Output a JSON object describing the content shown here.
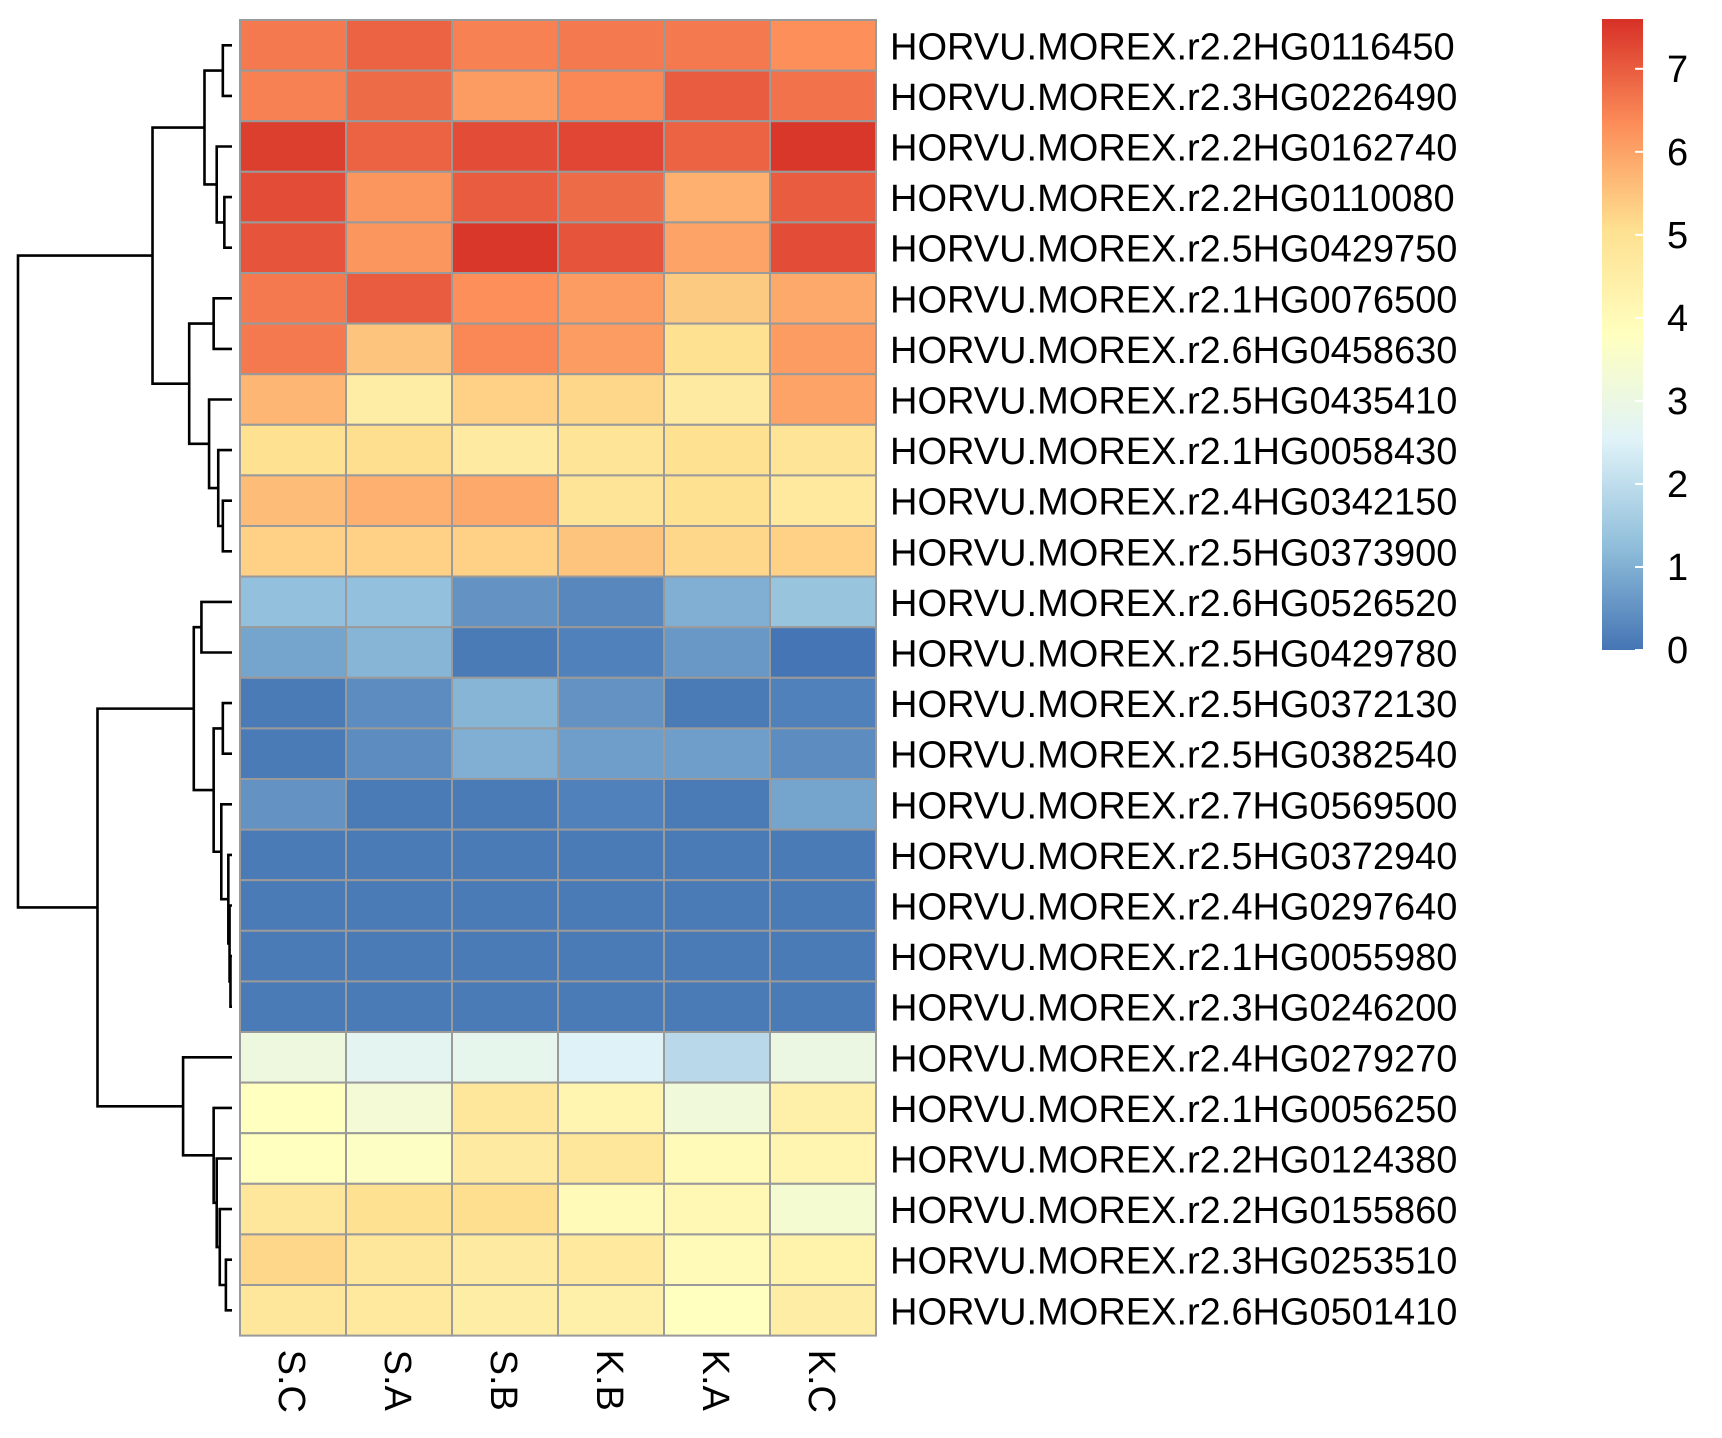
{
  "chart_data": {
    "type": "heatmap",
    "title": "",
    "xlabel": "",
    "ylabel": "",
    "columns": [
      "S.C",
      "S.A",
      "S.B",
      "K.B",
      "K.A",
      "K.C"
    ],
    "rows": [
      "HORVU.MOREX.r2.2HG0116450",
      "HORVU.MOREX.r2.3HG0226490",
      "HORVU.MOREX.r2.2HG0162740",
      "HORVU.MOREX.r2.2HG0110080",
      "HORVU.MOREX.r2.5HG0429750",
      "HORVU.MOREX.r2.1HG0076500",
      "HORVU.MOREX.r2.6HG0458630",
      "HORVU.MOREX.r2.5HG0435410",
      "HORVU.MOREX.r2.1HG0058430",
      "HORVU.MOREX.r2.4HG0342150",
      "HORVU.MOREX.r2.5HG0373900",
      "HORVU.MOREX.r2.6HG0526520",
      "HORVU.MOREX.r2.5HG0429780",
      "HORVU.MOREX.r2.5HG0372130",
      "HORVU.MOREX.r2.5HG0382540",
      "HORVU.MOREX.r2.7HG0569500",
      "HORVU.MOREX.r2.5HG0372940",
      "HORVU.MOREX.r2.4HG0297640",
      "HORVU.MOREX.r2.1HG0055980",
      "HORVU.MOREX.r2.3HG0246200",
      "HORVU.MOREX.r2.4HG0279270",
      "HORVU.MOREX.r2.1HG0056250",
      "HORVU.MOREX.r2.2HG0124380",
      "HORVU.MOREX.r2.2HG0155860",
      "HORVU.MOREX.r2.3HG0253510",
      "HORVU.MOREX.r2.6HG0501410"
    ],
    "values": [
      [
        6.6,
        6.9,
        6.5,
        6.6,
        6.6,
        6.3
      ],
      [
        6.5,
        6.8,
        6.1,
        6.4,
        7.0,
        6.7
      ],
      [
        7.4,
        6.9,
        7.2,
        7.3,
        6.9,
        7.5
      ],
      [
        7.2,
        6.2,
        7.0,
        6.8,
        5.8,
        7.0
      ],
      [
        7.1,
        6.2,
        7.5,
        7.1,
        6.0,
        7.2
      ],
      [
        6.6,
        7.0,
        6.3,
        6.1,
        5.4,
        5.9
      ],
      [
        6.6,
        5.5,
        6.4,
        6.1,
        5.0,
        6.1
      ],
      [
        5.7,
        4.5,
        5.3,
        5.2,
        4.6,
        6.0
      ],
      [
        5.0,
        5.1,
        4.6,
        4.9,
        5.0,
        4.9
      ],
      [
        5.6,
        5.8,
        5.9,
        4.9,
        5.0,
        4.7
      ],
      [
        5.3,
        5.3,
        5.3,
        5.5,
        5.2,
        5.3
      ],
      [
        1.3,
        1.3,
        0.5,
        0.3,
        1.0,
        1.4
      ],
      [
        0.8,
        1.1,
        0.1,
        0.2,
        0.6,
        0.0
      ],
      [
        0.1,
        0.4,
        1.1,
        0.5,
        0.1,
        0.2
      ],
      [
        0.1,
        0.4,
        1.0,
        0.7,
        0.7,
        0.4
      ],
      [
        0.5,
        0.1,
        0.1,
        0.2,
        0.1,
        0.8
      ],
      [
        0.1,
        0.1,
        0.1,
        0.1,
        0.1,
        0.1
      ],
      [
        0.1,
        0.1,
        0.1,
        0.1,
        0.1,
        0.1
      ],
      [
        0.1,
        0.1,
        0.1,
        0.1,
        0.1,
        0.1
      ],
      [
        0.1,
        0.1,
        0.1,
        0.1,
        0.1,
        0.1
      ],
      [
        3.1,
        2.7,
        2.8,
        2.5,
        1.9,
        3.0
      ],
      [
        3.8,
        3.3,
        4.8,
        4.2,
        3.2,
        4.4
      ],
      [
        3.8,
        3.7,
        4.6,
        4.8,
        4.0,
        4.2
      ],
      [
        4.8,
        5.0,
        5.1,
        4.0,
        4.1,
        3.4
      ],
      [
        5.2,
        4.8,
        4.6,
        4.7,
        4.0,
        4.3
      ],
      [
        4.8,
        4.7,
        4.5,
        4.4,
        3.8,
        4.5
      ]
    ],
    "value_range": [
      0,
      7.6
    ],
    "colorbar": {
      "ticks": [
        "0",
        "1",
        "2",
        "3",
        "4",
        "5",
        "6",
        "7"
      ],
      "colors": [
        "#4575b4",
        "#91bfdb",
        "#e0f3f8",
        "#ffffbf",
        "#fee090",
        "#fc8d59",
        "#d73027"
      ],
      "position": "right"
    },
    "row_dendrogram": {
      "side": "left",
      "order": [
        {
          "id": 26,
          "a": 0,
          "b": 1,
          "h": 0.3
        },
        {
          "id": 27,
          "a": 3,
          "b": 4,
          "h": 0.25
        },
        {
          "id": 28,
          "a": 2,
          "b": 27,
          "h": 0.5
        },
        {
          "id": 29,
          "a": 26,
          "b": 28,
          "h": 0.9
        },
        {
          "id": 30,
          "a": 5,
          "b": 6,
          "h": 0.6
        },
        {
          "id": 31,
          "a": 9,
          "b": 10,
          "h": 0.3
        },
        {
          "id": 32,
          "a": 8,
          "b": 31,
          "h": 0.45
        },
        {
          "id": 33,
          "a": 7,
          "b": 32,
          "h": 0.75
        },
        {
          "id": 34,
          "a": 30,
          "b": 33,
          "h": 1.4
        },
        {
          "id": 35,
          "a": 29,
          "b": 34,
          "h": 2.6
        },
        {
          "id": 36,
          "a": 11,
          "b": 12,
          "h": 1.0
        },
        {
          "id": 37,
          "a": 13,
          "b": 14,
          "h": 0.3
        },
        {
          "id": 38,
          "a": 18,
          "b": 19,
          "h": 0.05
        },
        {
          "id": 39,
          "a": 17,
          "b": 38,
          "h": 0.08
        },
        {
          "id": 40,
          "a": 16,
          "b": 39,
          "h": 0.12
        },
        {
          "id": 41,
          "a": 15,
          "b": 40,
          "h": 0.35
        },
        {
          "id": 42,
          "a": 37,
          "b": 41,
          "h": 0.6
        },
        {
          "id": 43,
          "a": 36,
          "b": 42,
          "h": 1.25
        },
        {
          "id": 44,
          "a": 24,
          "b": 25,
          "h": 0.2
        },
        {
          "id": 45,
          "a": 23,
          "b": 44,
          "h": 0.4
        },
        {
          "id": 46,
          "a": 22,
          "b": 45,
          "h": 0.5
        },
        {
          "id": 47,
          "a": 21,
          "b": 46,
          "h": 0.6
        },
        {
          "id": 48,
          "a": 20,
          "b": 47,
          "h": 1.6
        },
        {
          "id": 49,
          "a": 43,
          "b": 48,
          "h": 4.4
        },
        {
          "id": 50,
          "a": 35,
          "b": 49,
          "h": 7.0
        }
      ]
    }
  }
}
